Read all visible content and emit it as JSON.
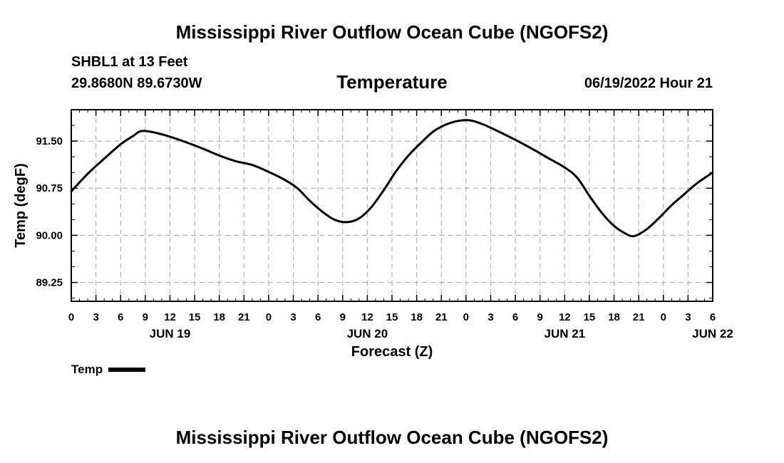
{
  "header": {
    "title": "Mississippi River Outflow Ocean Cube (NGOFS2)",
    "station": "SHBL1 at 13 Feet",
    "coordinates": "29.8680N  89.6730W",
    "variable_title": "Temperature",
    "datetime": "06/19/2022 Hour 21"
  },
  "footer": {
    "title": "Mississippi River Outflow Ocean Cube (NGOFS2)"
  },
  "legend": {
    "label": "Temp"
  },
  "chart_data": {
    "type": "line",
    "title": "Temperature",
    "xlabel": "Forecast (Z)",
    "ylabel": "Temp (degF)",
    "x_unit": "hours since 2022-06-19 00Z",
    "xlim": [
      0,
      78
    ],
    "ylim": [
      88.95,
      92.0
    ],
    "x_ticks": [
      0,
      3,
      6,
      9,
      12,
      15,
      18,
      21,
      24,
      27,
      30,
      33,
      36,
      39,
      42,
      45,
      48,
      51,
      54,
      57,
      60,
      63,
      66,
      69,
      72,
      75,
      78
    ],
    "x_tick_labels": [
      "0",
      "3",
      "6",
      "9",
      "12",
      "15",
      "18",
      "21",
      "0",
      "3",
      "6",
      "9",
      "12",
      "15",
      "18",
      "21",
      "0",
      "3",
      "6",
      "9",
      "12",
      "15",
      "18",
      "21",
      "0",
      "3",
      "6"
    ],
    "x_minor_step": 1,
    "date_labels": [
      {
        "x": 12,
        "label": "JUN 19"
      },
      {
        "x": 36,
        "label": "JUN 20"
      },
      {
        "x": 60,
        "label": "JUN 21"
      },
      {
        "x": 78,
        "label": "JUN 22"
      }
    ],
    "y_ticks": [
      89.25,
      90.0,
      90.75,
      91.5
    ],
    "y_tick_labels": [
      "89.25",
      "90.00",
      "90.75",
      "91.50"
    ],
    "y_minor_step": 0.25,
    "grid": true,
    "legend_position": "bottom-left",
    "series": [
      {
        "name": "Temp",
        "color": "#000000",
        "points": [
          [
            0,
            90.7
          ],
          [
            2,
            90.98
          ],
          [
            4,
            91.22
          ],
          [
            6,
            91.45
          ],
          [
            7.5,
            91.58
          ],
          [
            8.5,
            91.66
          ],
          [
            10,
            91.64
          ],
          [
            12,
            91.57
          ],
          [
            14,
            91.48
          ],
          [
            16,
            91.38
          ],
          [
            18,
            91.27
          ],
          [
            20,
            91.18
          ],
          [
            22,
            91.12
          ],
          [
            24,
            91.01
          ],
          [
            26,
            90.88
          ],
          [
            27.5,
            90.75
          ],
          [
            29,
            90.55
          ],
          [
            30.5,
            90.38
          ],
          [
            32,
            90.25
          ],
          [
            33.5,
            90.21
          ],
          [
            35,
            90.27
          ],
          [
            36.5,
            90.45
          ],
          [
            38,
            90.72
          ],
          [
            39.5,
            91.02
          ],
          [
            41,
            91.27
          ],
          [
            42.5,
            91.47
          ],
          [
            44,
            91.65
          ],
          [
            45.5,
            91.76
          ],
          [
            47,
            91.82
          ],
          [
            48.5,
            91.83
          ],
          [
            50,
            91.77
          ],
          [
            52,
            91.65
          ],
          [
            54,
            91.52
          ],
          [
            56,
            91.38
          ],
          [
            58,
            91.23
          ],
          [
            60,
            91.08
          ],
          [
            61.5,
            90.92
          ],
          [
            63,
            90.63
          ],
          [
            64.5,
            90.36
          ],
          [
            66,
            90.15
          ],
          [
            67.5,
            90.02
          ],
          [
            68.5,
            89.99
          ],
          [
            70,
            90.1
          ],
          [
            71.5,
            90.28
          ],
          [
            73,
            90.48
          ],
          [
            74.5,
            90.65
          ],
          [
            76,
            90.82
          ],
          [
            78,
            91.0
          ]
        ]
      }
    ]
  }
}
